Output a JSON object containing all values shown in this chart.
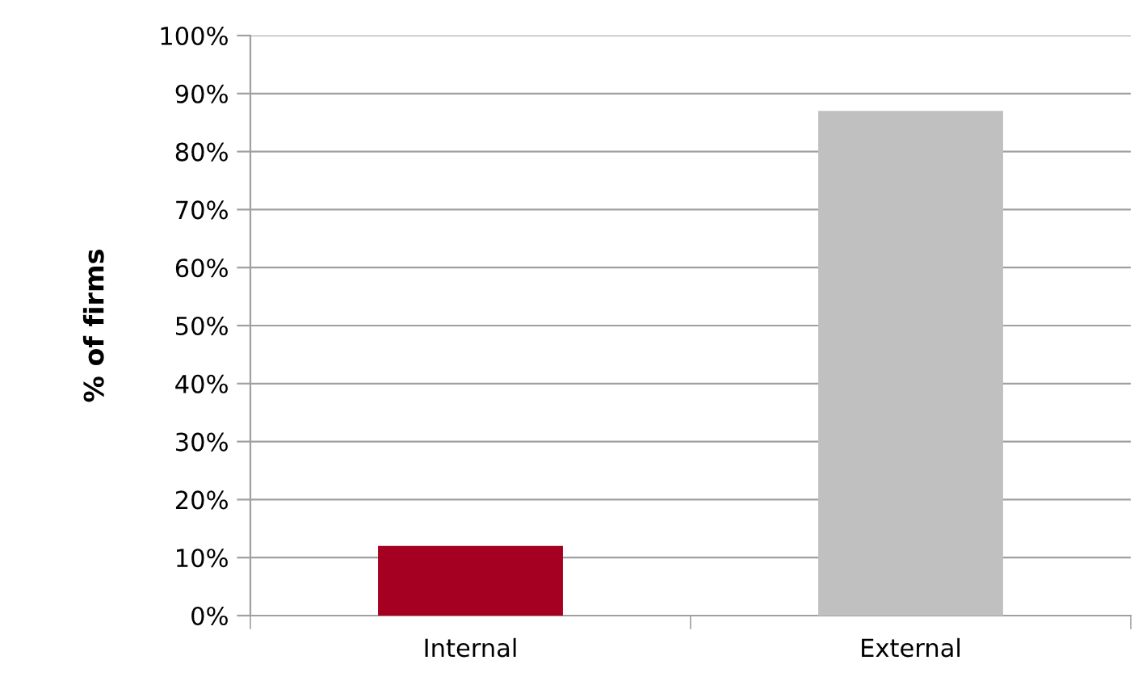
{
  "chart_data": {
    "type": "bar",
    "ylabel": "% of firms",
    "categories": [
      "Internal",
      "External"
    ],
    "values": [
      12,
      87
    ],
    "colors": [
      "#a50021",
      "#c0c0c0"
    ],
    "ylim": [
      0,
      100
    ],
    "yticks": [
      {
        "value": 0,
        "label": "0%"
      },
      {
        "value": 10,
        "label": "10%"
      },
      {
        "value": 20,
        "label": "20%"
      },
      {
        "value": 30,
        "label": "30%"
      },
      {
        "value": 40,
        "label": "40%"
      },
      {
        "value": 50,
        "label": "50%"
      },
      {
        "value": 60,
        "label": "60%"
      },
      {
        "value": 70,
        "label": "70%"
      },
      {
        "value": 80,
        "label": "80%"
      },
      {
        "value": 90,
        "label": "90%"
      },
      {
        "value": 100,
        "label": "100%"
      }
    ],
    "grid": "y",
    "legend": false
  }
}
